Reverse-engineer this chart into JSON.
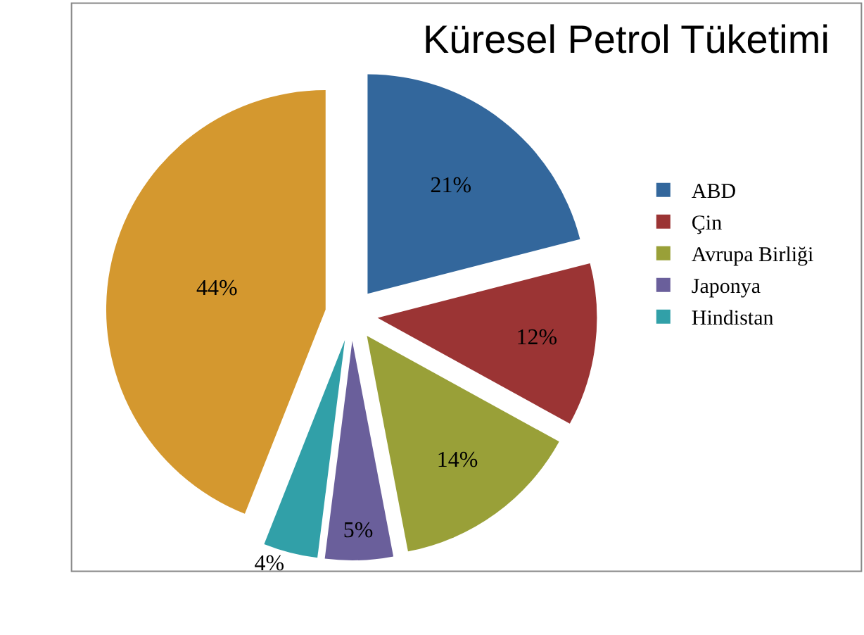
{
  "chart_data": {
    "type": "pie",
    "title": "Küresel Petrol Tüketimi",
    "categories": [
      "ABD",
      "Çin",
      "Avrupa Birliği",
      "Japonya",
      "Hindistan",
      null
    ],
    "values": [
      21,
      12,
      14,
      5,
      4,
      44
    ],
    "value_labels": [
      "21%",
      "12%",
      "14%",
      "5%",
      "4%",
      "44%"
    ],
    "colors": [
      "#33679c",
      "#9b3434",
      "#99a038",
      "#6a5f9b",
      "#31a0a8",
      "#d4982f"
    ],
    "legend": "right"
  }
}
